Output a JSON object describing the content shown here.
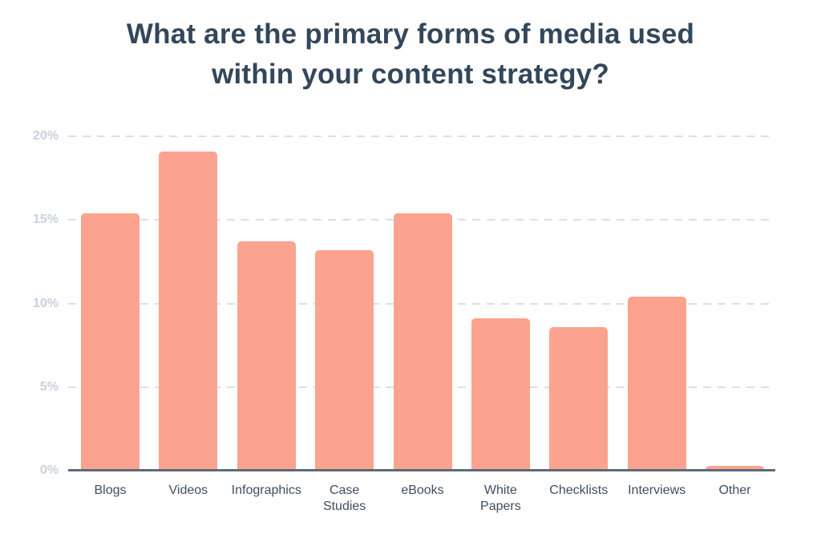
{
  "chart_data": {
    "type": "bar",
    "title": "What are the primary forms of media used within your content strategy?",
    "categories": [
      "Blogs",
      "Videos",
      "Infographics",
      "Case Studies",
      "eBooks",
      "White Papers",
      "Checklists",
      "Interviews",
      "Other"
    ],
    "values": [
      15.4,
      19.1,
      13.7,
      13.2,
      15.4,
      9.1,
      8.6,
      10.4,
      0.3
    ],
    "value_unit": "%",
    "xlabel": "",
    "ylabel": "",
    "ylim": [
      0,
      20
    ],
    "y_ticks": [
      "20%",
      "15%",
      "10%",
      "5%",
      "0%"
    ],
    "grid": "horizontal-dashed",
    "legend": "none",
    "bar_corner_radius_px": 5
  },
  "colors": {
    "bar": "#FBA38E",
    "title": "#33475B",
    "x_label": "#3D4F63",
    "y_tick": "#C8D1DE",
    "grid": "#DADFE8",
    "axis": "#5B6B7A",
    "background": "#FFFFFF"
  }
}
